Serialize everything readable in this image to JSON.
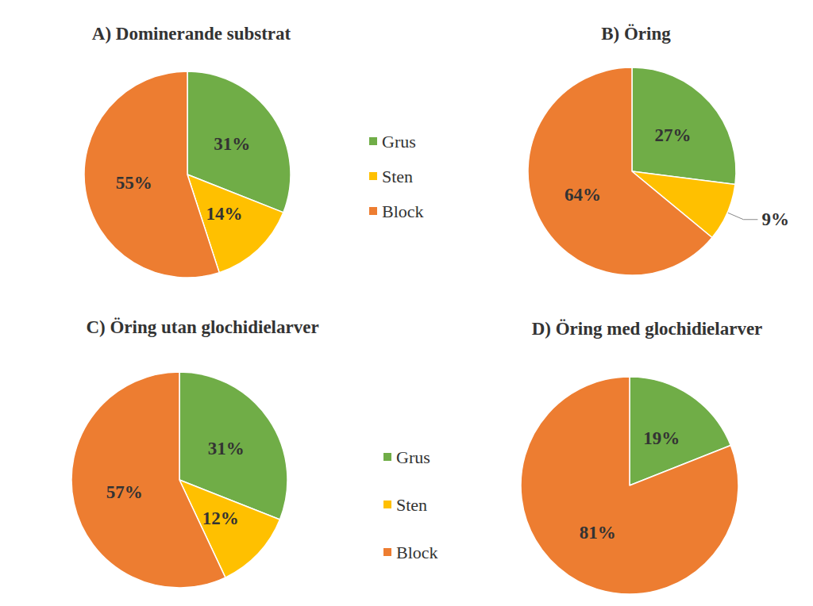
{
  "chart_data": [
    {
      "type": "pie",
      "title": "A) Dominerande substrat",
      "categories": [
        "Grus",
        "Sten",
        "Block"
      ],
      "values": [
        31,
        14,
        55
      ],
      "value_labels": [
        "31%",
        "14%",
        "55%"
      ],
      "colors": [
        "#70ad47",
        "#ffc000",
        "#ed7d31"
      ],
      "data_labels": true,
      "legend": "right"
    },
    {
      "type": "pie",
      "title": "B) Öring",
      "categories": [
        "Grus",
        "Sten",
        "Block"
      ],
      "values": [
        27,
        9,
        64
      ],
      "value_labels": [
        "27%",
        "9%",
        "64%"
      ],
      "colors": [
        "#70ad47",
        "#ffc000",
        "#ed7d31"
      ],
      "data_labels": true
    },
    {
      "type": "pie",
      "title": "C) Öring utan glochidielarver",
      "categories": [
        "Grus",
        "Sten",
        "Block"
      ],
      "values": [
        31,
        12,
        57
      ],
      "value_labels": [
        "31%",
        "12%",
        "57%"
      ],
      "colors": [
        "#70ad47",
        "#ffc000",
        "#ed7d31"
      ],
      "data_labels": true,
      "legend": "right"
    },
    {
      "type": "pie",
      "title": "D) Öring med glochidielarver",
      "categories": [
        "Grus",
        "Block"
      ],
      "values": [
        19,
        81
      ],
      "value_labels": [
        "19%",
        "81%"
      ],
      "colors": [
        "#70ad47",
        "#ed7d31"
      ],
      "data_labels": true
    }
  ]
}
